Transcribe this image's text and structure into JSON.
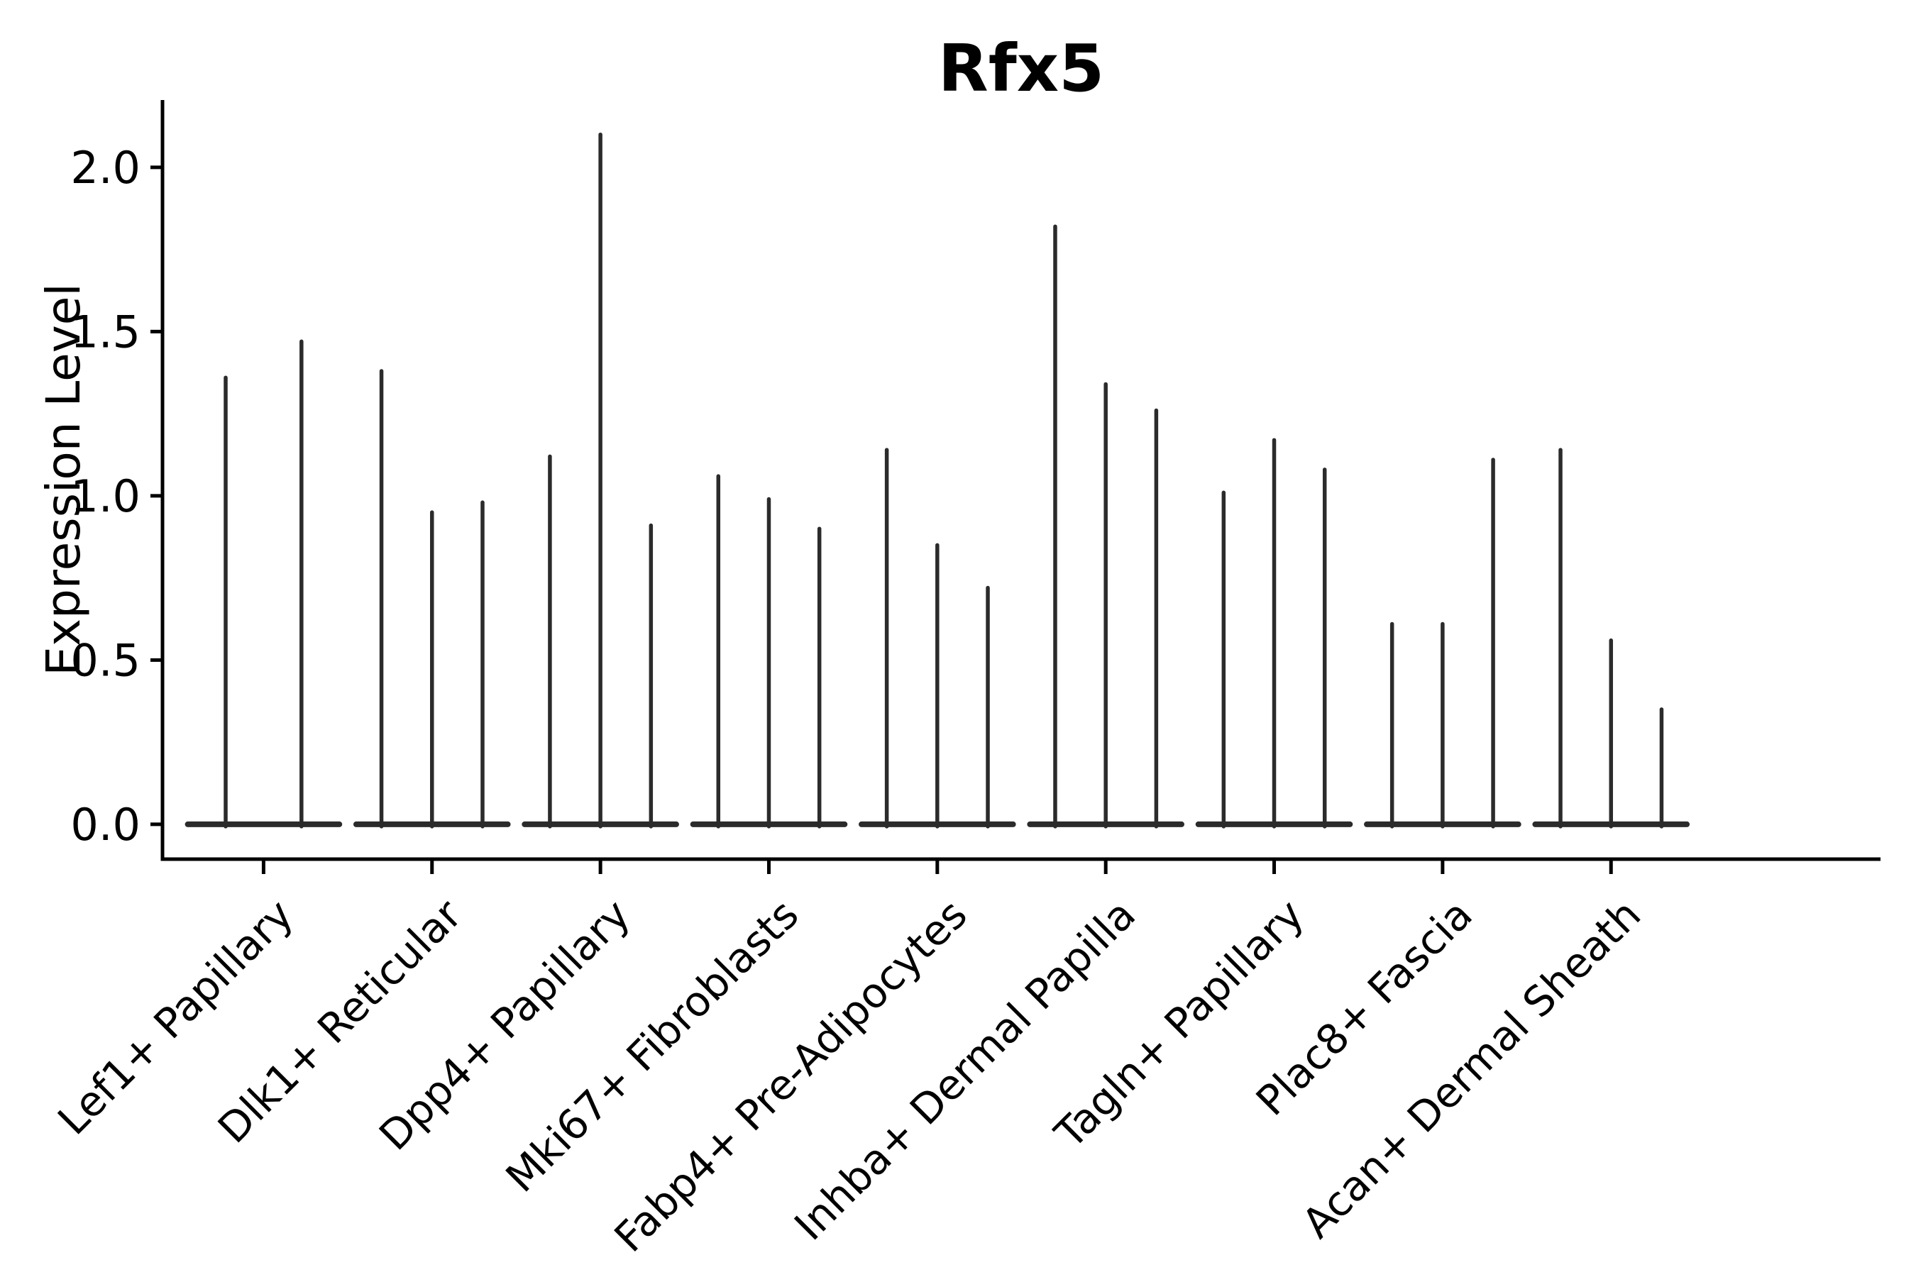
{
  "figure": {
    "background_color": "#ffffff"
  },
  "chart_data": {
    "type": "violin",
    "title": "Rfx5",
    "xlabel": "",
    "ylabel": "Expression Level",
    "yticks": [
      0.0,
      0.5,
      1.0,
      1.5,
      2.0
    ],
    "ylim": [
      -0.106,
      2.205
    ],
    "grid": false,
    "legend_position": "none",
    "colors": {
      "violin": "#2b2b2b",
      "axis": "#000000",
      "text": "#000000"
    },
    "categories": [
      "Lef1+ Papillary",
      "Dlk1+ Reticular",
      "Dpp4+ Papillary",
      "Mki67+ Fibroblasts",
      "Fabp4+ Pre-Adipocytes",
      "Inhba+ Dermal Papilla",
      "Tagln+ Papillary",
      "Plac8+ Fascia",
      "Acan+ Dermal Sheath"
    ],
    "groups": [
      {
        "label": "Lef1+ Papillary",
        "spike_max_values": [
          1.36,
          1.47
        ]
      },
      {
        "label": "Dlk1+ Reticular",
        "spike_max_values": [
          1.38,
          0.95,
          0.98
        ]
      },
      {
        "label": "Dpp4+ Papillary",
        "spike_max_values": [
          1.12,
          2.1,
          0.91
        ]
      },
      {
        "label": "Mki67+ Fibroblasts",
        "spike_max_values": [
          1.06,
          0.99,
          0.9
        ]
      },
      {
        "label": "Fabp4+ Pre-Adipocytes",
        "spike_max_values": [
          1.14,
          0.85,
          0.72
        ]
      },
      {
        "label": "Inhba+ Dermal Papilla",
        "spike_max_values": [
          1.82,
          1.34,
          1.26
        ]
      },
      {
        "label": "Tagln+ Papillary",
        "spike_max_values": [
          1.01,
          1.17,
          1.08
        ]
      },
      {
        "label": "Plac8+ Fascia",
        "spike_max_values": [
          0.61,
          0.61,
          1.11
        ]
      },
      {
        "label": "Acan+ Dermal Sheath",
        "spike_max_values": [
          1.14,
          0.56,
          0.35
        ]
      }
    ]
  }
}
